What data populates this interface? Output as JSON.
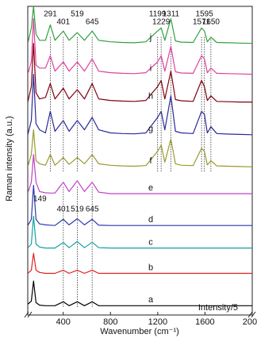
{
  "chart_data": {
    "type": "line",
    "xlabel": "Wavenumber (cm⁻¹)",
    "ylabel": "Raman intensity (a.u.)",
    "xlim": [
      100,
      2000
    ],
    "xticks": [
      400,
      800,
      1200,
      1600,
      2000
    ],
    "ylim": [
      0,
      100
    ],
    "annotation": "Intensity/5",
    "top_peaks": [
      291,
      401,
      519,
      645,
      1199,
      1229,
      1311,
      1571,
      1595,
      1650
    ],
    "bottom_peaks": [
      149,
      401,
      519,
      645
    ],
    "x": [
      100,
      130,
      149,
      170,
      200,
      250,
      291,
      330,
      401,
      450,
      519,
      580,
      645,
      700,
      800,
      900,
      1000,
      1100,
      1199,
      1229,
      1260,
      1311,
      1350,
      1400,
      1500,
      1571,
      1595,
      1620,
      1650,
      1700,
      1800,
      1900,
      2000
    ],
    "series": [
      {
        "name": "a",
        "color": "#000000",
        "values": [
          3.5,
          4.5,
          11,
          4,
          3.2,
          3,
          3,
          3,
          4.3,
          3,
          4.3,
          3,
          4.3,
          3,
          3,
          3,
          3,
          3,
          3,
          3,
          3,
          3,
          3,
          3,
          3,
          3,
          3,
          3,
          3,
          3,
          3,
          3,
          3
        ]
      },
      {
        "name": "b",
        "color": "#e02020",
        "values": [
          13.5,
          14.5,
          20,
          14.5,
          13.8,
          13.5,
          13.5,
          13.5,
          14.5,
          13.5,
          14.5,
          13.5,
          14.5,
          13.5,
          13.5,
          13.5,
          13.5,
          13.5,
          13.5,
          13.5,
          13.5,
          13.5,
          13.5,
          13.5,
          13.5,
          13.5,
          13.5,
          13.5,
          13.5,
          13.5,
          13.5,
          13.5,
          13.5
        ]
      },
      {
        "name": "c",
        "color": "#16a0a0",
        "values": [
          21.7,
          23,
          32,
          23,
          22,
          21.7,
          21.7,
          21.7,
          23.5,
          21.8,
          23.8,
          21.8,
          23.6,
          21.8,
          21.7,
          21.7,
          21.7,
          21.7,
          21.7,
          21.7,
          21.7,
          21.7,
          21.7,
          21.7,
          21.7,
          21.7,
          21.7,
          21.7,
          21.7,
          21.7,
          21.7,
          21.7,
          21.7
        ]
      },
      {
        "name": "d",
        "color": "#2a3ab0",
        "values": [
          29,
          31,
          42,
          31,
          29.5,
          29.2,
          29.1,
          29,
          31,
          29.2,
          31.2,
          29.2,
          31,
          29.1,
          29,
          29,
          29,
          29,
          29,
          29,
          29,
          29,
          29,
          29,
          29,
          29,
          29,
          29,
          29,
          29,
          29,
          29,
          29
        ]
      },
      {
        "name": "e",
        "color": "#c040c8",
        "values": [
          39.5,
          43,
          52,
          43,
          40,
          39.6,
          39.5,
          39.5,
          43,
          40,
          43.5,
          40,
          43,
          39.8,
          39.3,
          39.3,
          39.3,
          39.3,
          39.3,
          39.3,
          39.3,
          39.3,
          39.3,
          39.3,
          39.3,
          39.3,
          39.3,
          39.3,
          39.3,
          39.3,
          39.3,
          39.3,
          39.3
        ]
      },
      {
        "name": "f",
        "color": "#9a9a30",
        "values": [
          48,
          52,
          60,
          50,
          49,
          48.5,
          52,
          48.5,
          51,
          48.8,
          51,
          49,
          52,
          49,
          48.5,
          48.3,
          48.2,
          48.4,
          53,
          55,
          49.5,
          57,
          49,
          48.5,
          48.4,
          54,
          53,
          48.6,
          50,
          48.3,
          48.2,
          48.1,
          48
        ]
      },
      {
        "name": "g",
        "color": "#2a2a98",
        "values": [
          58.4,
          63,
          78,
          62,
          60,
          59,
          66,
          59.5,
          63,
          59.5,
          63,
          60,
          64,
          60,
          59,
          58.8,
          58.7,
          59,
          64,
          66,
          60,
          71,
          59.5,
          59,
          58.8,
          66,
          65,
          59,
          61,
          58.8,
          58.6,
          58.5,
          58.4
        ]
      },
      {
        "name": "h",
        "color": "#800010",
        "values": [
          69,
          74,
          88,
          72,
          70,
          70.5,
          75,
          70,
          73.5,
          70,
          73,
          70,
          75,
          70,
          69.5,
          69.3,
          69.2,
          69.5,
          74,
          76,
          70,
          79,
          69.8,
          69.4,
          69.2,
          76,
          74,
          69.5,
          71,
          69.2,
          69.1,
          69,
          69
        ]
      },
      {
        "name": "i",
        "color": "#e040a0",
        "values": [
          78,
          82,
          96,
          81,
          80,
          80,
          84,
          79,
          82,
          79,
          82,
          79,
          83,
          79,
          78.5,
          78.3,
          78.2,
          78.5,
          82,
          84,
          79,
          87,
          78.8,
          78.4,
          78.3,
          84,
          83,
          78.5,
          80,
          78.3,
          78.2,
          78.1,
          78
        ]
      },
      {
        "name": "j",
        "color": "#30a040",
        "values": [
          88,
          93,
          100,
          91,
          89,
          89,
          94,
          89,
          92,
          89,
          91.5,
          89,
          92,
          89,
          88.5,
          88.3,
          88.2,
          88.5,
          92,
          93,
          89,
          96,
          88.8,
          88.4,
          88.3,
          93,
          92,
          88.5,
          90,
          88.3,
          88.2,
          88.1,
          88
        ]
      }
    ]
  }
}
